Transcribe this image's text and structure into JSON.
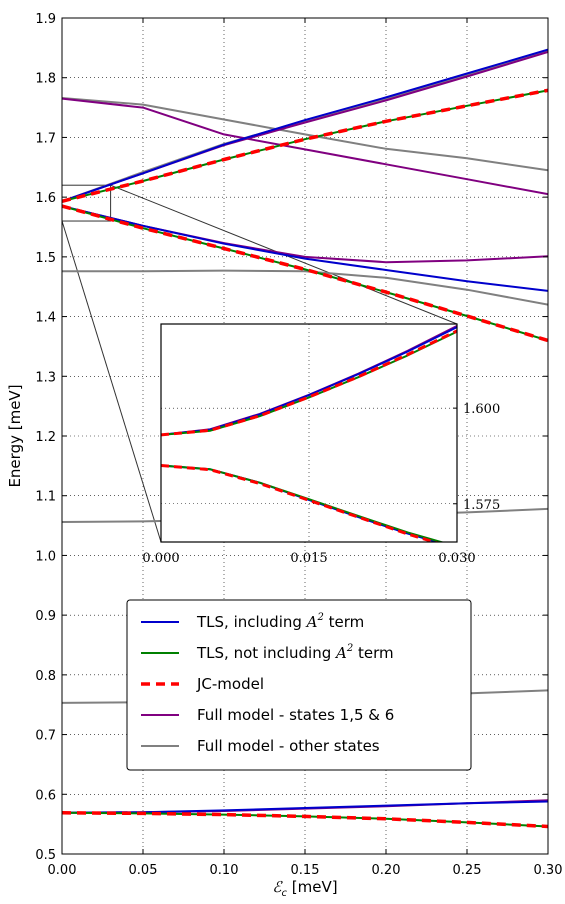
{
  "chart_data": {
    "type": "line",
    "xlabel": {
      "symbol": "ℰ",
      "subscript": "c",
      "unit": " [meV]"
    },
    "ylabel": "Energy [meV]",
    "xlim": [
      0.0,
      0.3
    ],
    "ylim": [
      0.5,
      1.9
    ],
    "x_ticks": [
      "0.00",
      "0.05",
      "0.10",
      "0.15",
      "0.20",
      "0.25",
      "0.30"
    ],
    "y_ticks": [
      "0.5",
      "0.6",
      "0.7",
      "0.8",
      "0.9",
      "1.0",
      "1.1",
      "1.2",
      "1.3",
      "1.4",
      "1.5",
      "1.6",
      "1.7",
      "1.8",
      "1.9"
    ],
    "grid": true,
    "legend_position": "lower-center",
    "legend": [
      {
        "key": "tls_a2",
        "color": "#0000cc",
        "style": "solid",
        "parts": [
          {
            "t": "TLS, including "
          },
          {
            "t": "A",
            "it": true
          },
          {
            "t": "2",
            "sup": true
          },
          {
            "t": " term"
          }
        ]
      },
      {
        "key": "tls_noa2",
        "color": "#008000",
        "style": "solid",
        "parts": [
          {
            "t": "TLS, not including "
          },
          {
            "t": "A",
            "it": true
          },
          {
            "t": "2",
            "sup": true
          },
          {
            "t": " term"
          }
        ]
      },
      {
        "key": "jc",
        "color": "#ff0000",
        "style": "dashed",
        "parts": [
          {
            "t": "JC-model"
          }
        ]
      },
      {
        "key": "full156",
        "color": "#800080",
        "style": "solid",
        "parts": [
          {
            "t": "Full model - states 1,5 & 6"
          }
        ]
      },
      {
        "key": "fullother",
        "color": "#808080",
        "style": "solid",
        "parts": [
          {
            "t": "Full model - other states"
          }
        ]
      }
    ],
    "series": [
      {
        "key": "fullother",
        "color": "#808080",
        "width": 2,
        "x": [
          0,
          0.05,
          0.1,
          0.15,
          0.2,
          0.25,
          0.3
        ],
        "y": [
          1.766,
          1.755,
          1.73,
          1.705,
          1.681,
          1.665,
          1.645
        ]
      },
      {
        "key": "fullother",
        "color": "#808080",
        "width": 2,
        "x": [
          0,
          0.05,
          0.1,
          0.15,
          0.2,
          0.25,
          0.3
        ],
        "y": [
          1.593,
          1.642,
          1.689,
          1.728,
          1.765,
          1.805,
          1.845
        ]
      },
      {
        "key": "fullother",
        "color": "#808080",
        "width": 2,
        "x": [
          0,
          0.05,
          0.1,
          0.15,
          0.2,
          0.25,
          0.3
        ],
        "y": [
          1.476,
          1.476,
          1.477,
          1.476,
          1.465,
          1.445,
          1.42
        ]
      },
      {
        "key": "fullother",
        "color": "#808080",
        "width": 2,
        "x": [
          0,
          0.05,
          0.1,
          0.15,
          0.2,
          0.25,
          0.3
        ],
        "y": [
          1.056,
          1.057,
          1.06,
          1.064,
          1.068,
          1.072,
          1.078
        ]
      },
      {
        "key": "fullother",
        "color": "#808080",
        "width": 2,
        "x": [
          0,
          0.05,
          0.1,
          0.15,
          0.2,
          0.25,
          0.3
        ],
        "y": [
          0.753,
          0.754,
          0.757,
          0.761,
          0.765,
          0.769,
          0.774
        ]
      },
      {
        "key": "full156",
        "color": "#800080",
        "width": 2,
        "x": [
          0,
          0.05,
          0.1,
          0.15,
          0.2,
          0.25,
          0.3
        ],
        "y": [
          1.765,
          1.75,
          1.705,
          1.68,
          1.655,
          1.63,
          1.605
        ]
      },
      {
        "key": "full156",
        "color": "#800080",
        "width": 2,
        "x": [
          0,
          0.05,
          0.1,
          0.15,
          0.2,
          0.25,
          0.3
        ],
        "y": [
          1.593,
          1.64,
          1.687,
          1.725,
          1.762,
          1.802,
          1.843
        ]
      },
      {
        "key": "full156",
        "color": "#800080",
        "width": 2,
        "x": [
          0,
          0.05,
          0.1,
          0.15,
          0.2,
          0.25,
          0.3
        ],
        "y": [
          1.585,
          1.552,
          1.523,
          1.5,
          1.491,
          1.494,
          1.501
        ]
      },
      {
        "key": "full156",
        "color": "#800080",
        "width": 2,
        "x": [
          0,
          0.05,
          0.1,
          0.15,
          0.2,
          0.25,
          0.3
        ],
        "y": [
          0.569,
          0.57,
          0.572,
          0.576,
          0.58,
          0.585,
          0.59
        ]
      },
      {
        "key": "tls_a2",
        "color": "#0000cc",
        "width": 2,
        "x": [
          0,
          0.05,
          0.1,
          0.15,
          0.2,
          0.25,
          0.3
        ],
        "y": [
          1.593,
          1.64,
          1.688,
          1.729,
          1.767,
          1.807,
          1.847
        ]
      },
      {
        "key": "tls_a2",
        "color": "#0000cc",
        "width": 2,
        "x": [
          0,
          0.05,
          0.1,
          0.15,
          0.2,
          0.25,
          0.3
        ],
        "y": [
          1.585,
          1.552,
          1.522,
          1.497,
          1.478,
          1.459,
          1.443
        ]
      },
      {
        "key": "tls_a2",
        "color": "#0000cc",
        "width": 2,
        "x": [
          0,
          0.05,
          0.1,
          0.15,
          0.2,
          0.25,
          0.3
        ],
        "y": [
          0.569,
          0.57,
          0.573,
          0.577,
          0.581,
          0.585,
          0.588
        ]
      },
      {
        "key": "tls_noa2",
        "color": "#008000",
        "width": 2,
        "x": [
          0,
          0.05,
          0.1,
          0.15,
          0.2,
          0.25,
          0.3
        ],
        "y": [
          1.593,
          1.627,
          1.663,
          1.697,
          1.727,
          1.753,
          1.779
        ]
      },
      {
        "key": "tls_noa2",
        "color": "#008000",
        "width": 2,
        "x": [
          0,
          0.05,
          0.1,
          0.15,
          0.2,
          0.25,
          0.3
        ],
        "y": [
          1.585,
          1.548,
          1.514,
          1.479,
          1.441,
          1.401,
          1.36
        ]
      },
      {
        "key": "tls_noa2",
        "color": "#008000",
        "width": 2,
        "x": [
          0,
          0.05,
          0.1,
          0.15,
          0.2,
          0.25,
          0.3
        ],
        "y": [
          0.569,
          0.568,
          0.566,
          0.563,
          0.559,
          0.553,
          0.546
        ]
      },
      {
        "key": "jc",
        "color": "#ff0000",
        "width": 3.5,
        "dashed": true,
        "x": [
          0,
          0.05,
          0.1,
          0.15,
          0.2,
          0.25,
          0.3
        ],
        "y": [
          1.593,
          1.627,
          1.663,
          1.697,
          1.727,
          1.753,
          1.779
        ]
      },
      {
        "key": "jc",
        "color": "#ff0000",
        "width": 3.5,
        "dashed": true,
        "x": [
          0,
          0.05,
          0.1,
          0.15,
          0.2,
          0.25,
          0.3
        ],
        "y": [
          1.585,
          1.548,
          1.514,
          1.479,
          1.441,
          1.401,
          1.36
        ]
      },
      {
        "key": "jc",
        "color": "#ff0000",
        "width": 3.5,
        "dashed": true,
        "x": [
          0,
          0.05,
          0.1,
          0.15,
          0.2,
          0.25,
          0.3
        ],
        "y": [
          0.569,
          0.568,
          0.566,
          0.563,
          0.559,
          0.553,
          0.546
        ]
      }
    ],
    "zoom_box": {
      "xlim": [
        0.0,
        0.03
      ],
      "ylim": [
        1.56,
        1.62
      ]
    },
    "inset": {
      "xlim": [
        0.0,
        0.03
      ],
      "ylim": [
        1.565,
        1.622
      ],
      "x_ticks": [
        "0.000",
        "0.015",
        "0.030"
      ],
      "y_ticks": [
        "1.575",
        "1.600"
      ],
      "x_tick_values": [
        0.0,
        0.015,
        0.03
      ],
      "y_tick_values": [
        1.575,
        1.6
      ],
      "grid": true,
      "series": [
        {
          "color": "#800080",
          "width": 2,
          "x": [
            0,
            0.005,
            0.01,
            0.015,
            0.02,
            0.025,
            0.03
          ],
          "y": [
            1.593,
            1.5945,
            1.5985,
            1.6035,
            1.609,
            1.615,
            1.6215
          ]
        },
        {
          "color": "#0000cc",
          "width": 2,
          "x": [
            0,
            0.005,
            0.01,
            0.015,
            0.02,
            0.025,
            0.03
          ],
          "y": [
            1.593,
            1.5944,
            1.5984,
            1.6034,
            1.6089,
            1.6148,
            1.6212
          ]
        },
        {
          "color": "#008000",
          "width": 2,
          "x": [
            0,
            0.005,
            0.01,
            0.015,
            0.02,
            0.025,
            0.03
          ],
          "y": [
            1.593,
            1.5941,
            1.5979,
            1.6028,
            1.6081,
            1.6138,
            1.62
          ]
        },
        {
          "color": "#ff0000",
          "width": 3,
          "dashed": true,
          "x": [
            0,
            0.005,
            0.01,
            0.015,
            0.02,
            0.025,
            0.03
          ],
          "y": [
            1.593,
            1.5942,
            1.598,
            1.6029,
            1.6082,
            1.614,
            1.6202
          ]
        },
        {
          "color": "#0000cc",
          "width": 2,
          "x": [
            0,
            0.005,
            0.01,
            0.015,
            0.02,
            0.025,
            0.03
          ],
          "y": [
            1.585,
            1.584,
            1.5805,
            1.576,
            1.5715,
            1.5672,
            1.5635
          ]
        },
        {
          "color": "#008000",
          "width": 2,
          "x": [
            0,
            0.005,
            0.01,
            0.015,
            0.02,
            0.025,
            0.03
          ],
          "y": [
            1.585,
            1.584,
            1.5805,
            1.5762,
            1.5718,
            1.5675,
            1.5638
          ]
        },
        {
          "color": "#ff0000",
          "width": 3,
          "dashed": true,
          "x": [
            0,
            0.005,
            0.01,
            0.015,
            0.02,
            0.025,
            0.03
          ],
          "y": [
            1.585,
            1.5839,
            1.5803,
            1.5759,
            1.5715,
            1.5671,
            1.5632
          ]
        }
      ]
    }
  }
}
